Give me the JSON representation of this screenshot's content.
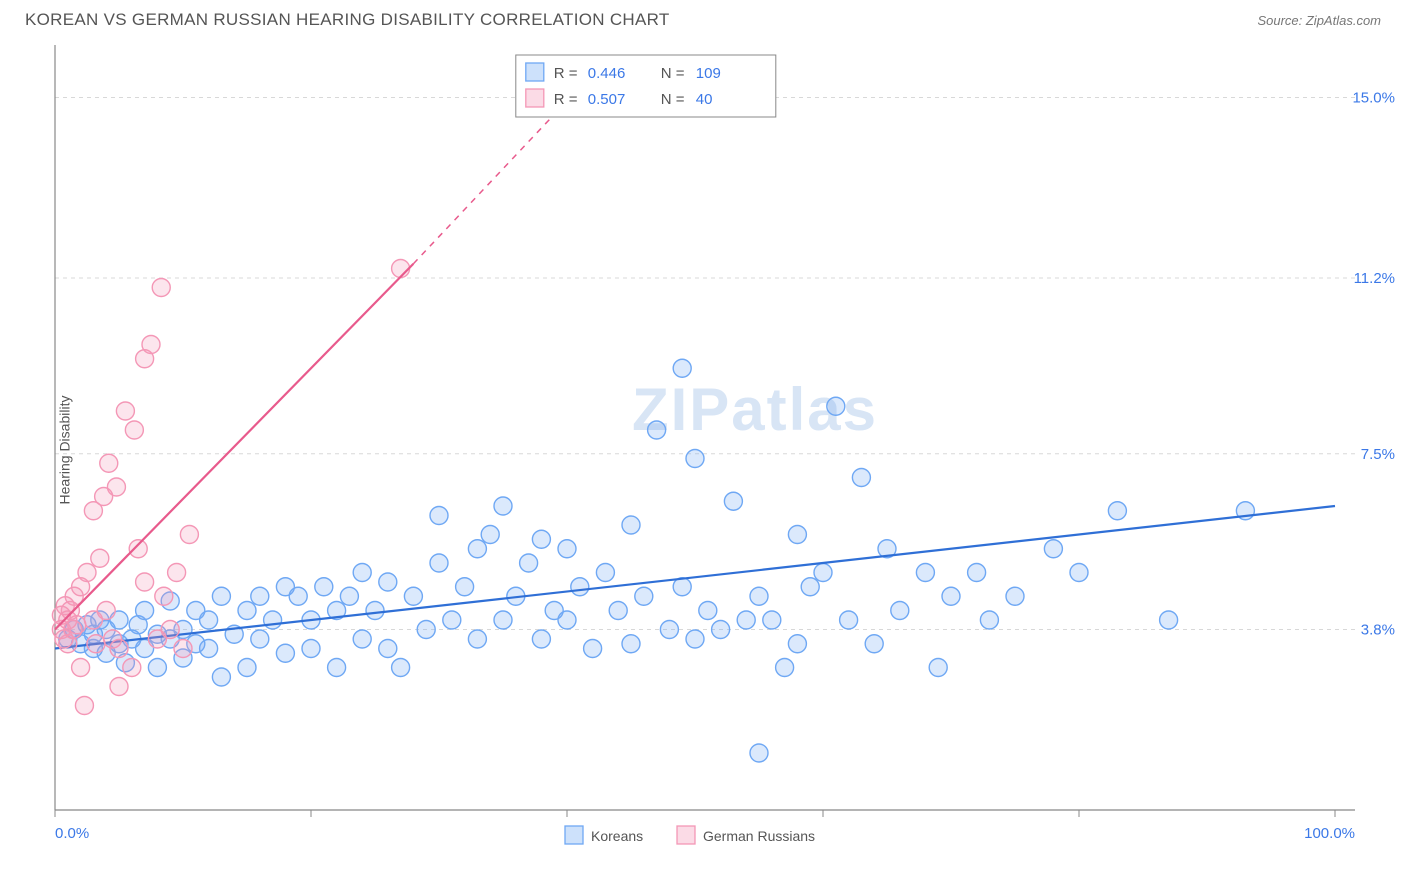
{
  "title": "KOREAN VS GERMAN RUSSIAN HEARING DISABILITY CORRELATION CHART",
  "source": "Source: ZipAtlas.com",
  "ylabel": "Hearing Disability",
  "watermark": "ZIPatlas",
  "chart": {
    "type": "scatter",
    "background_color": "#ffffff",
    "grid_color": "#d8d8d8",
    "axis_color": "#888888",
    "text_color": "#555555",
    "value_color": "#3b78e7",
    "xlim": [
      0,
      100
    ],
    "ylim": [
      0,
      16
    ],
    "x_ticks": [
      0,
      20,
      40,
      60,
      80,
      100
    ],
    "x_tick_labels": {
      "0": "0.0%",
      "100": "100.0%"
    },
    "y_ticks": [
      3.8,
      7.5,
      11.2,
      15.0
    ],
    "y_tick_labels": [
      "3.8%",
      "7.5%",
      "11.2%",
      "15.0%"
    ],
    "marker_radius": 9,
    "marker_fill_opacity": 0.25,
    "marker_stroke_width": 1.4,
    "line_width": 2.2,
    "series": [
      {
        "name": "Koreans",
        "color": "#6fa8f4",
        "line_color": "#2f6fd6",
        "R": "0.446",
        "N": "109",
        "trend": {
          "x1": 0,
          "y1": 3.4,
          "x2": 100,
          "y2": 6.4
        },
        "points": [
          [
            1,
            3.6
          ],
          [
            1.5,
            3.8
          ],
          [
            2,
            3.5
          ],
          [
            2.5,
            3.9
          ],
          [
            3,
            3.4
          ],
          [
            3,
            3.7
          ],
          [
            3.5,
            4.0
          ],
          [
            4,
            3.3
          ],
          [
            4,
            3.8
          ],
          [
            5,
            3.5
          ],
          [
            5,
            4.0
          ],
          [
            5.5,
            3.1
          ],
          [
            6,
            3.6
          ],
          [
            6.5,
            3.9
          ],
          [
            7,
            3.4
          ],
          [
            7,
            4.2
          ],
          [
            8,
            3.0
          ],
          [
            8,
            3.7
          ],
          [
            9,
            4.4
          ],
          [
            9,
            3.6
          ],
          [
            10,
            3.8
          ],
          [
            10,
            3.2
          ],
          [
            11,
            4.2
          ],
          [
            11,
            3.5
          ],
          [
            12,
            4.0
          ],
          [
            12,
            3.4
          ],
          [
            13,
            4.5
          ],
          [
            13,
            2.8
          ],
          [
            14,
            3.7
          ],
          [
            15,
            4.2
          ],
          [
            15,
            3.0
          ],
          [
            16,
            4.5
          ],
          [
            16,
            3.6
          ],
          [
            17,
            4.0
          ],
          [
            18,
            3.3
          ],
          [
            18,
            4.7
          ],
          [
            19,
            4.5
          ],
          [
            20,
            4.0
          ],
          [
            20,
            3.4
          ],
          [
            21,
            4.7
          ],
          [
            22,
            4.2
          ],
          [
            22,
            3.0
          ],
          [
            23,
            4.5
          ],
          [
            24,
            3.6
          ],
          [
            24,
            5.0
          ],
          [
            25,
            4.2
          ],
          [
            26,
            3.4
          ],
          [
            26,
            4.8
          ],
          [
            27,
            3.0
          ],
          [
            28,
            4.5
          ],
          [
            29,
            3.8
          ],
          [
            30,
            5.2
          ],
          [
            30,
            6.2
          ],
          [
            31,
            4.0
          ],
          [
            32,
            4.7
          ],
          [
            33,
            5.5
          ],
          [
            33,
            3.6
          ],
          [
            34,
            5.8
          ],
          [
            35,
            6.4
          ],
          [
            35,
            4.0
          ],
          [
            36,
            4.5
          ],
          [
            37,
            5.2
          ],
          [
            38,
            5.7
          ],
          [
            38,
            3.6
          ],
          [
            39,
            4.2
          ],
          [
            40,
            5.5
          ],
          [
            40,
            4.0
          ],
          [
            41,
            4.7
          ],
          [
            42,
            3.4
          ],
          [
            43,
            5.0
          ],
          [
            44,
            4.2
          ],
          [
            45,
            6.0
          ],
          [
            45,
            3.5
          ],
          [
            46,
            4.5
          ],
          [
            47,
            8.0
          ],
          [
            48,
            3.8
          ],
          [
            49,
            4.7
          ],
          [
            49,
            9.3
          ],
          [
            50,
            7.4
          ],
          [
            50,
            3.6
          ],
          [
            51,
            4.2
          ],
          [
            52,
            3.8
          ],
          [
            53,
            6.5
          ],
          [
            54,
            4.0
          ],
          [
            55,
            1.2
          ],
          [
            55,
            4.5
          ],
          [
            56,
            4.0
          ],
          [
            57,
            3.0
          ],
          [
            58,
            5.8
          ],
          [
            58,
            3.5
          ],
          [
            59,
            4.7
          ],
          [
            60,
            5.0
          ],
          [
            61,
            8.5
          ],
          [
            62,
            4.0
          ],
          [
            63,
            7.0
          ],
          [
            64,
            3.5
          ],
          [
            65,
            5.5
          ],
          [
            66,
            4.2
          ],
          [
            68,
            5.0
          ],
          [
            69,
            3.0
          ],
          [
            70,
            4.5
          ],
          [
            72,
            5.0
          ],
          [
            73,
            4.0
          ],
          [
            75,
            4.5
          ],
          [
            78,
            5.5
          ],
          [
            80,
            5.0
          ],
          [
            83,
            6.3
          ],
          [
            87,
            4.0
          ],
          [
            93,
            6.3
          ]
        ]
      },
      {
        "name": "German Russians",
        "color": "#f497b6",
        "line_color": "#e85a8c",
        "R": "0.507",
        "N": "40",
        "trend": {
          "x1": 0,
          "y1": 3.8,
          "x2": 28,
          "y2": 11.5
        },
        "trend_dash": {
          "x1": 28,
          "y1": 11.5,
          "x2": 42,
          "y2": 15.5
        },
        "points": [
          [
            0.5,
            3.8
          ],
          [
            0.5,
            4.1
          ],
          [
            0.7,
            3.6
          ],
          [
            0.8,
            4.3
          ],
          [
            1,
            4.0
          ],
          [
            1,
            3.5
          ],
          [
            1.2,
            4.2
          ],
          [
            1.4,
            3.8
          ],
          [
            1.5,
            4.5
          ],
          [
            1.7,
            3.9
          ],
          [
            2,
            3.0
          ],
          [
            2,
            4.7
          ],
          [
            2.3,
            2.2
          ],
          [
            2.5,
            5.0
          ],
          [
            3,
            4.0
          ],
          [
            3,
            6.3
          ],
          [
            3.2,
            3.5
          ],
          [
            3.5,
            5.3
          ],
          [
            3.8,
            6.6
          ],
          [
            4,
            4.2
          ],
          [
            4.2,
            7.3
          ],
          [
            4.5,
            3.6
          ],
          [
            4.8,
            6.8
          ],
          [
            5,
            2.6
          ],
          [
            5,
            3.4
          ],
          [
            5.5,
            8.4
          ],
          [
            6,
            3.0
          ],
          [
            6.2,
            8.0
          ],
          [
            6.5,
            5.5
          ],
          [
            7,
            4.8
          ],
          [
            7,
            9.5
          ],
          [
            7.5,
            9.8
          ],
          [
            8,
            3.6
          ],
          [
            8.3,
            11.0
          ],
          [
            8.5,
            4.5
          ],
          [
            9,
            3.8
          ],
          [
            9.5,
            5.0
          ],
          [
            10,
            3.4
          ],
          [
            10.5,
            5.8
          ],
          [
            27,
            11.4
          ]
        ]
      }
    ]
  },
  "stat_legend": {
    "box_border": "#888888",
    "label_color": "#555555",
    "value_color": "#3b78e7"
  },
  "bottom_legend_labels": [
    "Koreans",
    "German Russians"
  ]
}
